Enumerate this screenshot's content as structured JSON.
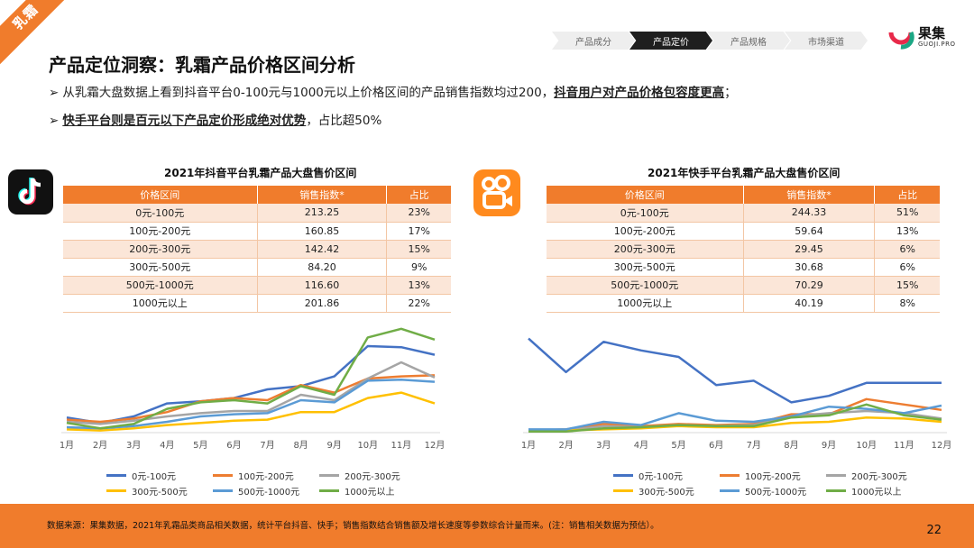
{
  "ribbon": "乳霜",
  "nav": [
    "产品成分",
    "产品定价",
    "产品规格",
    "市场渠道"
  ],
  "nav_active": 1,
  "logo": {
    "cn": "果集",
    "en": "GUOJI.PRO"
  },
  "title": "产品定位洞察：乳霜产品价格区间分析",
  "bullets": {
    "b1_text": "从乳霜大盘数据上看到抖音平台0-100元与1000元以上价格区间的产品销售指数均过200，",
    "b1_em": "抖音用户对产品价格包容度更高",
    "b1_end": "；",
    "b2_em": "快手平台则是百元以下产品定价形成绝对优势",
    "b2_text": "，占比超50%"
  },
  "douyin": {
    "title": "2021年抖音平台乳霜产品大盘售价区间",
    "headers": [
      "价格区间",
      "销售指数*",
      "占比"
    ],
    "rows": [
      [
        "0元-100元",
        "213.25",
        "23%"
      ],
      [
        "100元-200元",
        "160.85",
        "17%"
      ],
      [
        "200元-300元",
        "142.42",
        "15%"
      ],
      [
        "300元-500元",
        "84.20",
        "9%"
      ],
      [
        "500元-1000元",
        "116.60",
        "13%"
      ],
      [
        "1000元以上",
        "201.86",
        "22%"
      ]
    ]
  },
  "kuaishou": {
    "title": "2021年快手平台乳霜产品大盘售价区间",
    "headers": [
      "价格区间",
      "销售指数*",
      "占比"
    ],
    "rows": [
      [
        "0元-100元",
        "244.33",
        "51%"
      ],
      [
        "100元-200元",
        "59.64",
        "13%"
      ],
      [
        "200元-300元",
        "29.45",
        "6%"
      ],
      [
        "300元-500元",
        "30.68",
        "6%"
      ],
      [
        "500元-1000元",
        "70.29",
        "15%"
      ],
      [
        "1000元以上",
        "40.19",
        "8%"
      ]
    ]
  },
  "colors": {
    "accent": "#f07c2c",
    "series": [
      "#4472c4",
      "#ed7d31",
      "#a5a5a5",
      "#ffc000",
      "#5b9bd5",
      "#70ad47"
    ]
  },
  "chart_data": [
    {
      "type": "line",
      "categories": [
        "1月",
        "2月",
        "3月",
        "4月",
        "5月",
        "6月",
        "7月",
        "8月",
        "9月",
        "10月",
        "11月",
        "12月"
      ],
      "ylim": [
        0,
        100
      ],
      "series": [
        {
          "name": "0元-100元",
          "values": [
            14,
            9,
            15,
            27,
            29,
            32,
            40,
            43,
            52,
            80,
            79,
            72
          ]
        },
        {
          "name": "100元-200元",
          "values": [
            12,
            10,
            13,
            19,
            29,
            32,
            30,
            44,
            37,
            50,
            52,
            53
          ]
        },
        {
          "name": "200元-300元",
          "values": [
            10,
            8,
            11,
            15,
            18,
            20,
            20,
            35,
            30,
            50,
            65,
            51
          ]
        },
        {
          "name": "300元-500元",
          "values": [
            3,
            2,
            4,
            7,
            9,
            11,
            12,
            19,
            19,
            32,
            37,
            27
          ]
        },
        {
          "name": "500元-1000元",
          "values": [
            5,
            4,
            6,
            10,
            15,
            17,
            18,
            30,
            28,
            48,
            49,
            47
          ]
        },
        {
          "name": "1000元以上",
          "values": [
            9,
            4,
            8,
            22,
            28,
            30,
            27,
            43,
            35,
            88,
            96,
            86
          ]
        }
      ]
    },
    {
      "type": "line",
      "categories": [
        "1月",
        "2月",
        "3月",
        "4月",
        "5月",
        "6月",
        "7月",
        "8月",
        "9月",
        "10月",
        "11月",
        "12月"
      ],
      "ylim": [
        0,
        100
      ],
      "series": [
        {
          "name": "0元-100元",
          "values": [
            87,
            56,
            84,
            76,
            70,
            44,
            48,
            28,
            34,
            46,
            46,
            46
          ]
        },
        {
          "name": "100元-200元",
          "values": [
            2,
            3,
            8,
            6,
            8,
            7,
            8,
            17,
            17,
            31,
            26,
            21
          ]
        },
        {
          "name": "200元-300元",
          "values": [
            2,
            2,
            6,
            5,
            7,
            6,
            7,
            15,
            18,
            20,
            18,
            13
          ]
        },
        {
          "name": "300元-500元",
          "values": [
            1,
            2,
            3,
            4,
            6,
            5,
            5,
            9,
            10,
            14,
            13,
            10
          ]
        },
        {
          "name": "500元-1000元",
          "values": [
            3,
            3,
            10,
            7,
            18,
            11,
            10,
            15,
            24,
            22,
            18,
            25
          ]
        },
        {
          "name": "1000元以上",
          "values": [
            1,
            1,
            4,
            5,
            7,
            6,
            6,
            14,
            16,
            26,
            16,
            12
          ]
        }
      ]
    }
  ],
  "footer": "数据来源：果集数据，2021年乳霜品类商品相关数据，统计平台抖音、快手；销售指数结合销售额及增长速度等参数综合计量而来。(注：销售相关数据为预估）。",
  "page_number": "22"
}
